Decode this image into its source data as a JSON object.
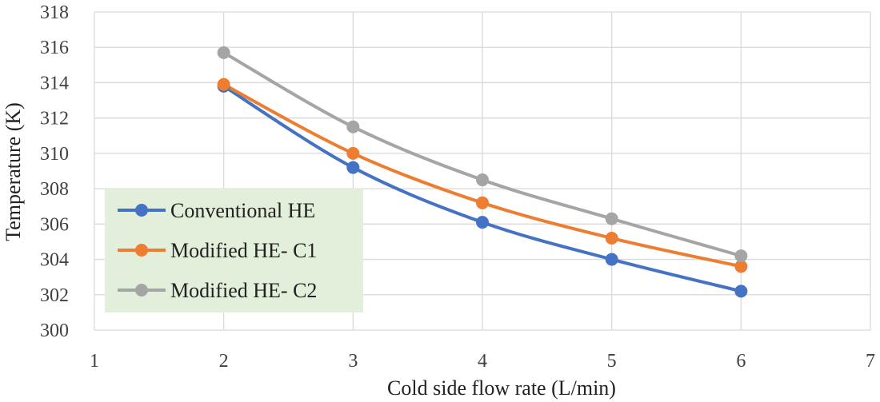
{
  "chart_data": {
    "type": "line",
    "title": "",
    "xlabel": "Cold side flow rate (L/min)",
    "ylabel": "Temperature (K)",
    "xlim": [
      1,
      7
    ],
    "ylim": [
      300,
      318
    ],
    "x_ticks": [
      "1",
      "2",
      "3",
      "4",
      "5",
      "6",
      "7"
    ],
    "y_ticks": [
      "300",
      "302",
      "304",
      "306",
      "308",
      "310",
      "312",
      "314",
      "316",
      "318"
    ],
    "grid": true,
    "smooth": true,
    "legend_position": "left",
    "legend_background": "#e2efda",
    "series": [
      {
        "name": "Conventional HE",
        "color": "#4472c4",
        "x": [
          2,
          3,
          4,
          5,
          6
        ],
        "y": [
          313.8,
          309.2,
          306.1,
          304.0,
          302.2
        ]
      },
      {
        "name": "Modified HE- C1",
        "color": "#ed7d31",
        "x": [
          2,
          3,
          4,
          5,
          6
        ],
        "y": [
          313.9,
          310.0,
          307.2,
          305.2,
          303.6
        ]
      },
      {
        "name": "Modified HE- C2",
        "color": "#a5a5a5",
        "x": [
          2,
          3,
          4,
          5,
          6
        ],
        "y": [
          315.7,
          311.5,
          308.5,
          306.3,
          304.2
        ]
      }
    ]
  }
}
